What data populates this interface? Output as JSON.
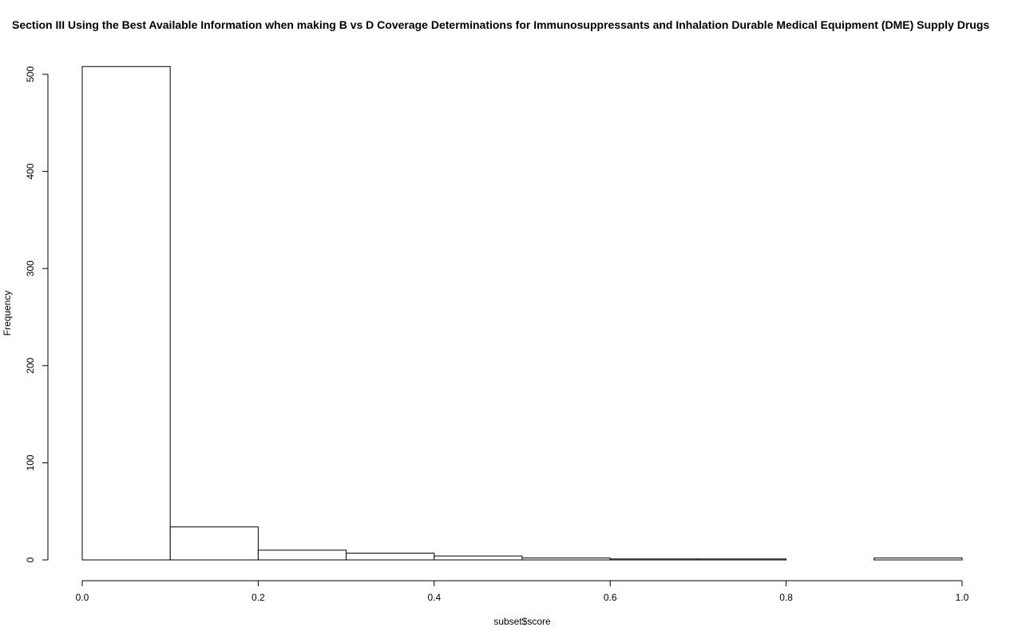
{
  "chart_data": {
    "type": "bar",
    "title": "Section III Using the Best Available Information when making B vs D Coverage Determinations for Immunosuppressants and Inhalation Durable Medical Equipment (DME) Supply Drugs",
    "xlabel": "subset$score",
    "ylabel": "Frequency",
    "bins": [
      {
        "start": 0.0,
        "end": 0.1,
        "count": 508
      },
      {
        "start": 0.1,
        "end": 0.2,
        "count": 34
      },
      {
        "start": 0.2,
        "end": 0.3,
        "count": 10
      },
      {
        "start": 0.3,
        "end": 0.4,
        "count": 7
      },
      {
        "start": 0.4,
        "end": 0.5,
        "count": 4
      },
      {
        "start": 0.5,
        "end": 0.6,
        "count": 2
      },
      {
        "start": 0.6,
        "end": 0.7,
        "count": 1
      },
      {
        "start": 0.7,
        "end": 0.8,
        "count": 1
      },
      {
        "start": 0.8,
        "end": 0.9,
        "count": 0
      },
      {
        "start": 0.9,
        "end": 1.0,
        "count": 2
      }
    ],
    "xlim": [
      0,
      1
    ],
    "ylim": [
      0,
      508
    ],
    "x_ticks": [
      "0.0",
      "0.2",
      "0.4",
      "0.6",
      "0.8",
      "1.0"
    ],
    "y_ticks": [
      "0",
      "100",
      "200",
      "300",
      "400",
      "500"
    ],
    "grid": false,
    "bar_fill": "#ffffff",
    "bar_stroke": "#000000"
  }
}
